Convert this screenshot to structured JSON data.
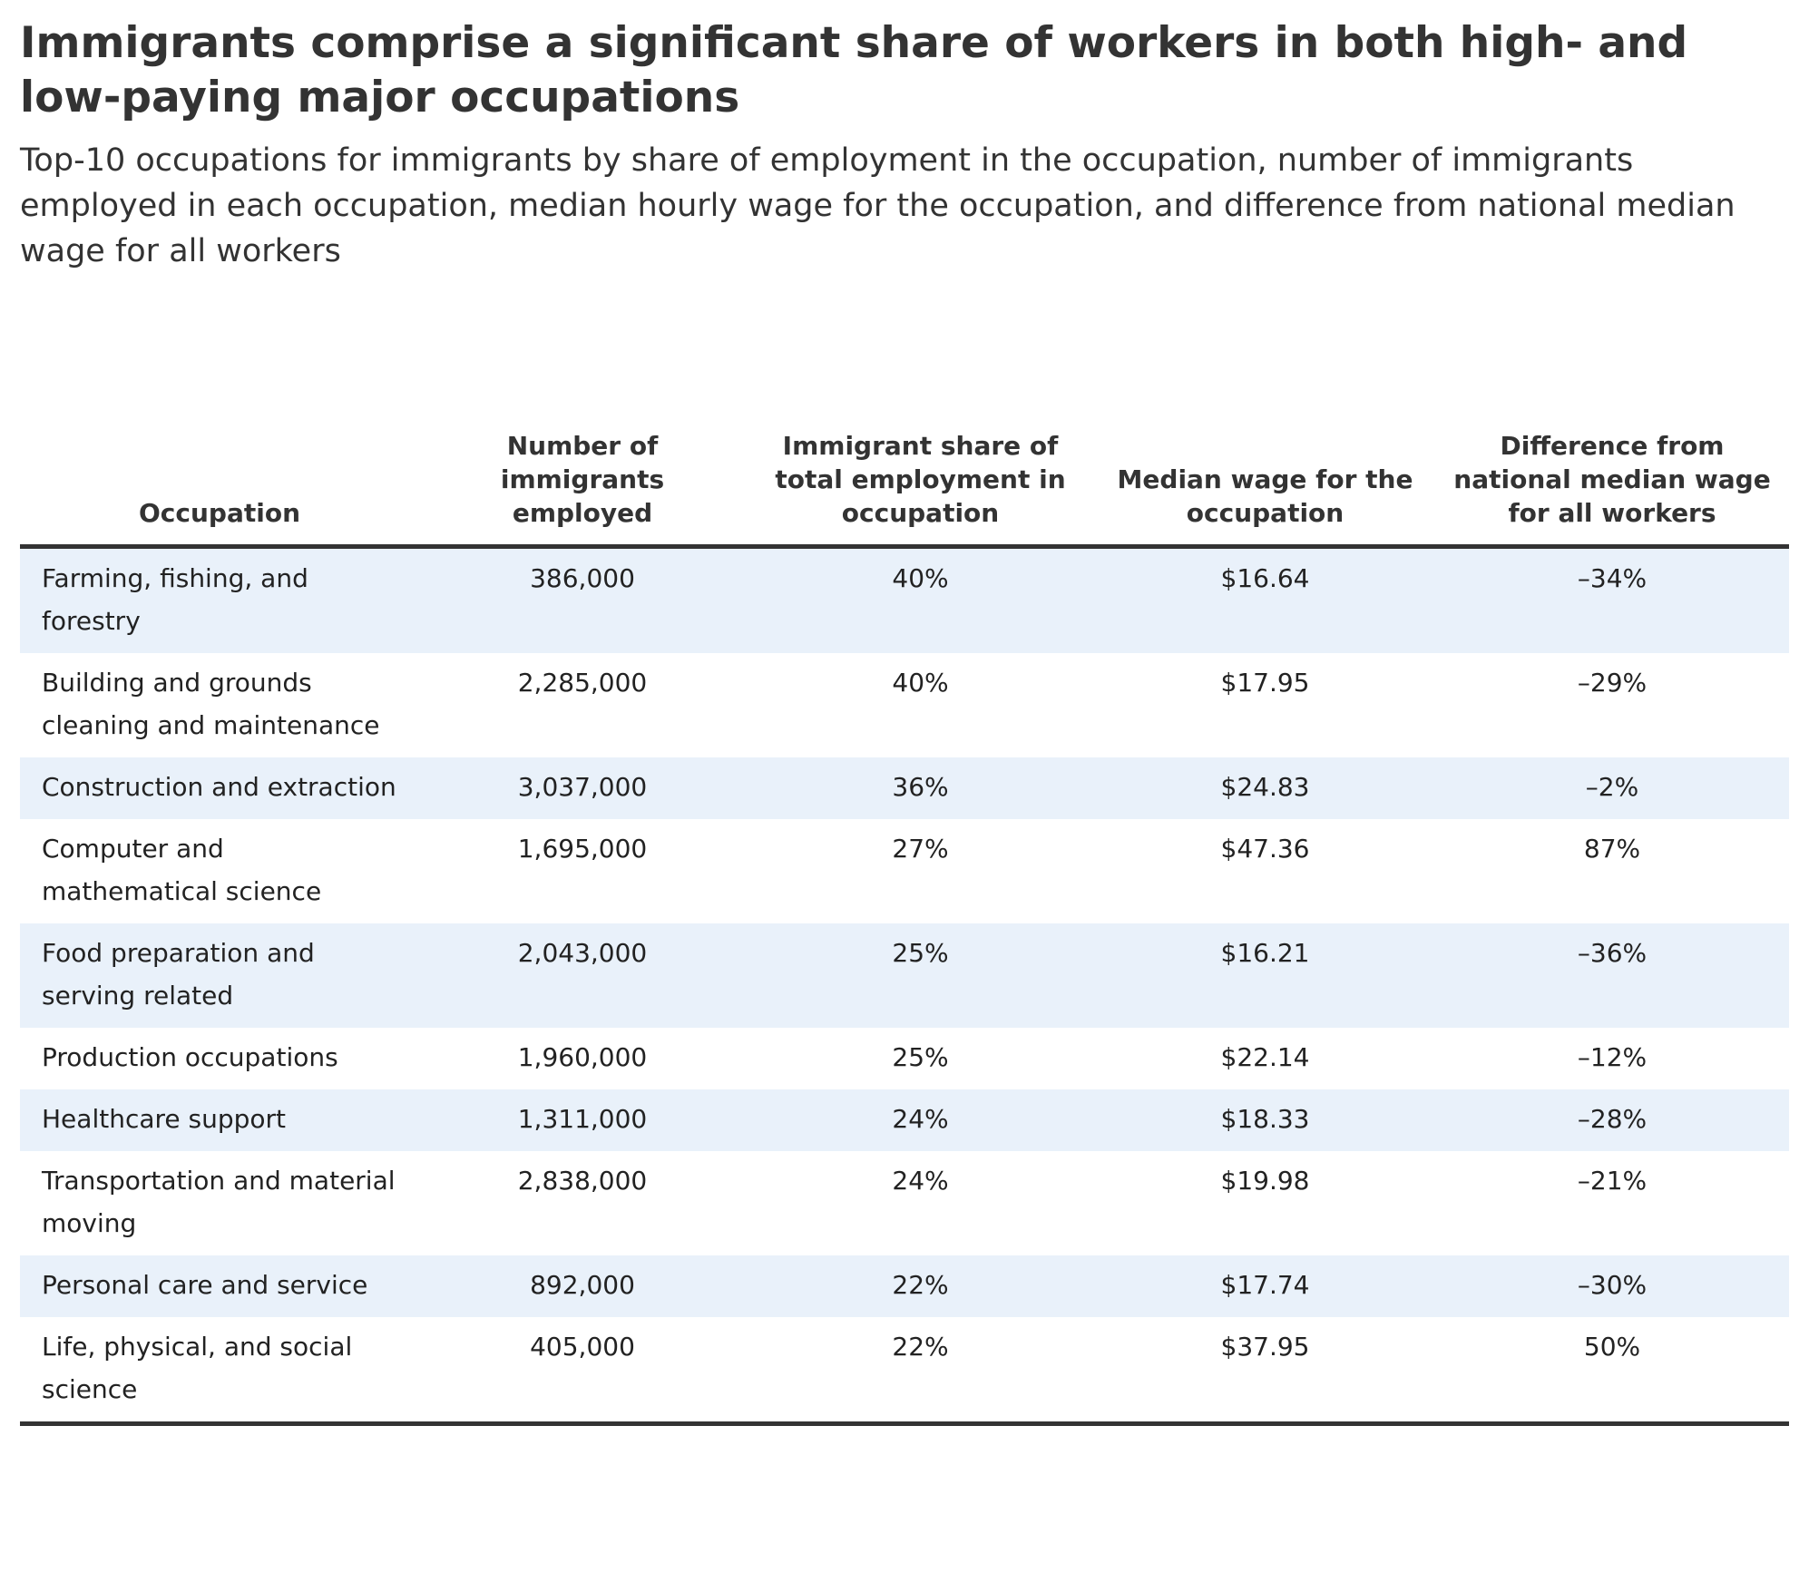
{
  "title": "Immigrants comprise a significant share of workers in both high- and low-paying major occupations",
  "subtitle": "Top-10 occupations for immigrants by share of employment in the occupation, number of immigrants employed in each occupation, median hourly wage for the occupation, and difference from national median wage for all workers",
  "colors": {
    "stripe": "#e9f1fa",
    "rule": "#333333",
    "text": "#222222"
  },
  "chart_data": {
    "type": "table",
    "columns": [
      "Occupation",
      "Number of immigrants employed",
      "Immigrant share of total employment in occupation",
      "Median wage for the occupation",
      "Difference from national median wage for all workers"
    ],
    "rows": [
      [
        "Farming, fishing, and forestry",
        "386,000",
        "40%",
        "$16.64",
        "–34%"
      ],
      [
        "Building and grounds cleaning and maintenance",
        "2,285,000",
        "40%",
        "$17.95",
        "–29%"
      ],
      [
        "Construction and extraction",
        "3,037,000",
        "36%",
        "$24.83",
        "–2%"
      ],
      [
        "Computer and mathematical science",
        "1,695,000",
        "27%",
        "$47.36",
        "87%"
      ],
      [
        "Food preparation and serving related",
        "2,043,000",
        "25%",
        "$16.21",
        "–36%"
      ],
      [
        "Production occupations",
        "1,960,000",
        "25%",
        "$22.14",
        "–12%"
      ],
      [
        "Healthcare support",
        "1,311,000",
        "24%",
        "$18.33",
        "–28%"
      ],
      [
        "Transportation and material moving",
        "2,838,000",
        "24%",
        "$19.98",
        "–21%"
      ],
      [
        "Personal care and service",
        "892,000",
        "22%",
        "$17.74",
        "–30%"
      ],
      [
        "Life, physical, and social science",
        "405,000",
        "22%",
        "$37.95",
        "50%"
      ]
    ]
  }
}
